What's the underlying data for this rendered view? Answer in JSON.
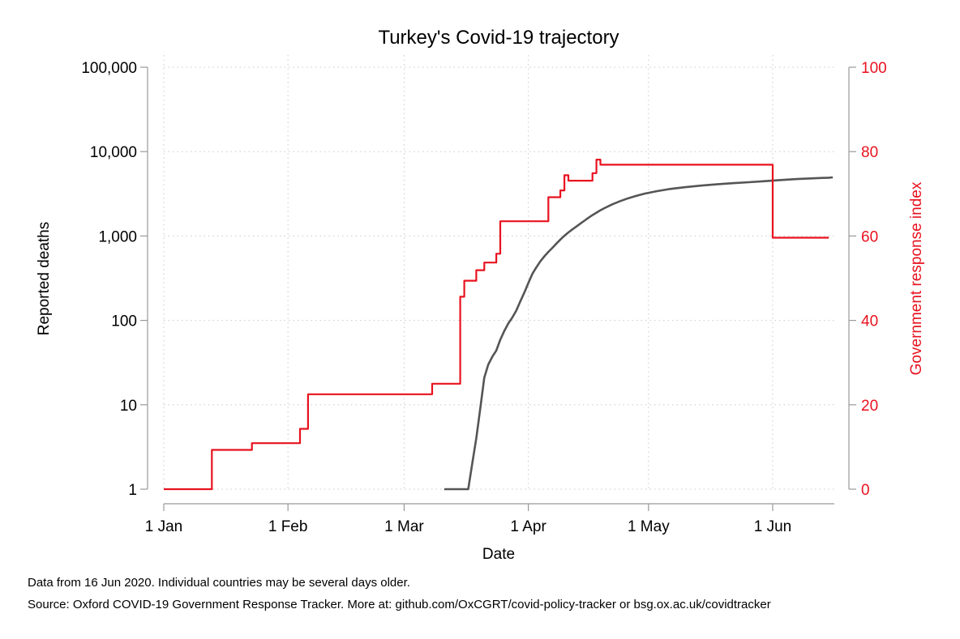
{
  "chart_data": {
    "type": "line",
    "title": "Turkey's Covid-19 trajectory",
    "xlabel": "Date",
    "ylabel_left": "Reported deaths",
    "ylabel_right": "Government response index",
    "y_left_scale": "log",
    "y_left_range": [
      1,
      100000
    ],
    "y_left_ticks": [
      {
        "value": 1,
        "label": "1"
      },
      {
        "value": 10,
        "label": "10"
      },
      {
        "value": 100,
        "label": "100"
      },
      {
        "value": 1000,
        "label": "1,000"
      },
      {
        "value": 10000,
        "label": "10,000"
      },
      {
        "value": 100000,
        "label": "100,000"
      }
    ],
    "y_right_range": [
      0,
      100
    ],
    "y_right_ticks": [
      {
        "value": 0,
        "label": "0"
      },
      {
        "value": 20,
        "label": "20"
      },
      {
        "value": 40,
        "label": "40"
      },
      {
        "value": 60,
        "label": "60"
      },
      {
        "value": 80,
        "label": "80"
      },
      {
        "value": 100,
        "label": "100"
      }
    ],
    "x_range": [
      "2020-01-01",
      "2020-06-16"
    ],
    "x_ticks": [
      {
        "value": "2020-01-01",
        "label": "1 Jan"
      },
      {
        "value": "2020-02-01",
        "label": "1 Feb"
      },
      {
        "value": "2020-03-01",
        "label": "1 Mar"
      },
      {
        "value": "2020-04-01",
        "label": "1 Apr"
      },
      {
        "value": "2020-05-01",
        "label": "1 May"
      },
      {
        "value": "2020-06-01",
        "label": "1 Jun"
      }
    ],
    "grid": true,
    "series": [
      {
        "axis": "left",
        "color": "#555555",
        "points": [
          [
            "2020-03-11",
            1
          ],
          [
            "2020-03-17",
            1
          ],
          [
            "2020-03-18",
            2
          ],
          [
            "2020-03-19",
            4
          ],
          [
            "2020-03-20",
            9
          ],
          [
            "2020-03-21",
            21
          ],
          [
            "2020-03-22",
            30
          ],
          [
            "2020-03-23",
            37
          ],
          [
            "2020-03-24",
            44
          ],
          [
            "2020-03-25",
            59
          ],
          [
            "2020-03-26",
            75
          ],
          [
            "2020-03-27",
            92
          ],
          [
            "2020-03-28",
            108
          ],
          [
            "2020-03-29",
            131
          ],
          [
            "2020-03-30",
            168
          ],
          [
            "2020-03-31",
            214
          ],
          [
            "2020-04-01",
            277
          ],
          [
            "2020-04-02",
            356
          ],
          [
            "2020-04-03",
            425
          ],
          [
            "2020-04-04",
            501
          ],
          [
            "2020-04-05",
            574
          ],
          [
            "2020-04-06",
            649
          ],
          [
            "2020-04-07",
            725
          ],
          [
            "2020-04-08",
            812
          ],
          [
            "2020-04-09",
            908
          ],
          [
            "2020-04-10",
            1006
          ],
          [
            "2020-04-11",
            1101
          ],
          [
            "2020-04-12",
            1198
          ],
          [
            "2020-04-13",
            1296
          ],
          [
            "2020-04-14",
            1403
          ],
          [
            "2020-04-15",
            1518
          ],
          [
            "2020-04-16",
            1643
          ],
          [
            "2020-04-17",
            1769
          ],
          [
            "2020-04-18",
            1890
          ],
          [
            "2020-04-19",
            2017
          ],
          [
            "2020-04-20",
            2140
          ],
          [
            "2020-04-22",
            2376
          ],
          [
            "2020-04-24",
            2600
          ],
          [
            "2020-04-26",
            2805
          ],
          [
            "2020-04-28",
            2992
          ],
          [
            "2020-04-30",
            3174
          ],
          [
            "2020-05-03",
            3397
          ],
          [
            "2020-05-06",
            3584
          ],
          [
            "2020-05-10",
            3786
          ],
          [
            "2020-05-14",
            3952
          ],
          [
            "2020-05-18",
            4096
          ],
          [
            "2020-05-22",
            4222
          ],
          [
            "2020-05-26",
            4340
          ],
          [
            "2020-05-30",
            4461
          ],
          [
            "2020-06-03",
            4609
          ],
          [
            "2020-06-07",
            4729
          ],
          [
            "2020-06-11",
            4825
          ],
          [
            "2020-06-15",
            4905
          ],
          [
            "2020-06-16",
            4950
          ]
        ]
      },
      {
        "axis": "right",
        "color": "#e8121f",
        "step": true,
        "points": [
          [
            "2020-01-01",
            0
          ],
          [
            "2020-01-13",
            9.3
          ],
          [
            "2020-01-23",
            10.9
          ],
          [
            "2020-02-04",
            14.3
          ],
          [
            "2020-02-06",
            22.5
          ],
          [
            "2020-03-08",
            25
          ],
          [
            "2020-03-15",
            45.6
          ],
          [
            "2020-03-16",
            49.4
          ],
          [
            "2020-03-19",
            51.9
          ],
          [
            "2020-03-21",
            53.7
          ],
          [
            "2020-03-24",
            55.8
          ],
          [
            "2020-03-25",
            63.5
          ],
          [
            "2020-04-06",
            69.2
          ],
          [
            "2020-04-09",
            70.8
          ],
          [
            "2020-04-10",
            74.4
          ],
          [
            "2020-04-11",
            73.1
          ],
          [
            "2020-04-17",
            74.9
          ],
          [
            "2020-04-18",
            78.1
          ],
          [
            "2020-04-19",
            76.9
          ],
          [
            "2020-05-31",
            76.9
          ],
          [
            "2020-06-01",
            59.6
          ],
          [
            "2020-06-15",
            59.6
          ]
        ]
      }
    ]
  },
  "notes": {
    "line1": "Data from 16 Jun 2020. Individual countries may be several days older.",
    "line2": "Source: Oxford COVID-19 Government Response Tracker. More at: github.com/OxCGRT/covid-policy-tracker or bsg.ox.ac.uk/covidtracker"
  }
}
